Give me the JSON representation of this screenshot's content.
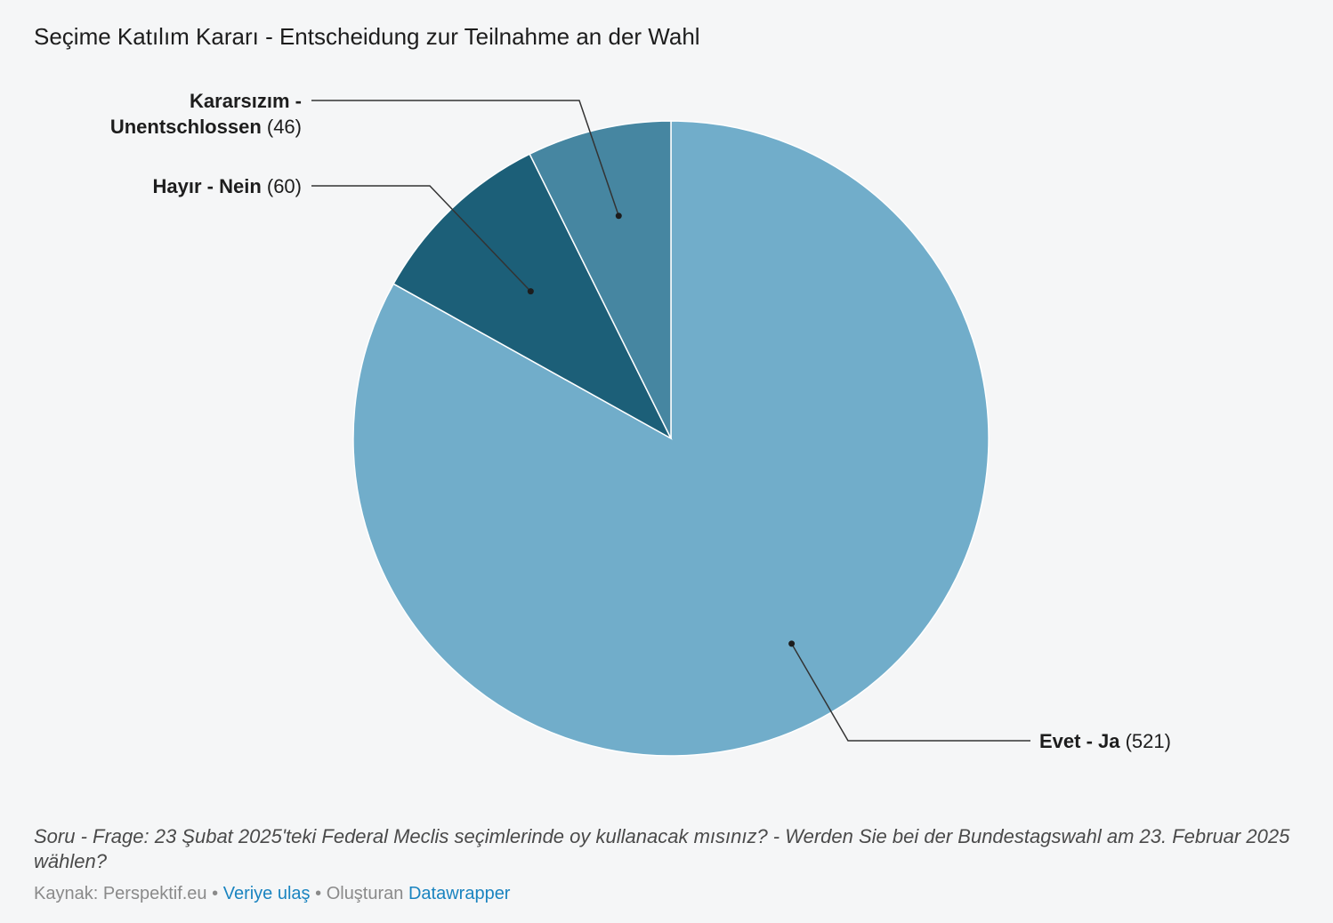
{
  "title": "Seçime Katılım Kararı - Entscheidung zur Teilnahme an der Wahl",
  "chart_data": {
    "type": "pie",
    "slices": [
      {
        "label": "Evet - Ja",
        "value": 521,
        "value_text": "(521)",
        "color": "#71adca"
      },
      {
        "label": "Hayır - Nein",
        "value": 60,
        "value_text": "(60)",
        "color": "#1c5f78"
      },
      {
        "label_lines": [
          "Kararsızım -",
          "Unentschlossen"
        ],
        "label": "Kararsızım - Unentschlossen",
        "value": 46,
        "value_text": "(46)",
        "color": "#4686a1"
      }
    ],
    "order": "clockwise from 12 o'clock"
  },
  "notes": "Soru - Frage: 23 Şubat 2025'teki Federal Meclis seçimlerinde oy kullanacak mısınız? - Werden Sie bei der Bundestagswahl am 23. Februar 2025 wählen?",
  "footer": {
    "source_label": "Kaynak:",
    "source_name": "Perspektif.eu",
    "separator": "•",
    "data_link": "Veriye ulaş",
    "created_label": "Oluşturan",
    "created_link": "Datawrapper"
  }
}
